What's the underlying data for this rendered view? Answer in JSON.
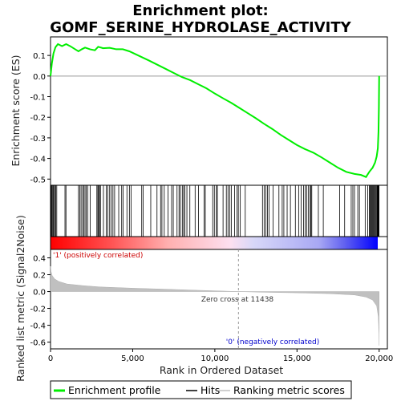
{
  "chart_data": {
    "type": "line",
    "title_line1": "Enrichment plot:",
    "title_line2": "GOMF_SERINE_HYDROLASE_ACTIVITY",
    "top_panel": {
      "ylabel": "Enrichment score (ES)",
      "ylim": [
        -0.53,
        0.19
      ],
      "yticks": [
        {
          "value": 0.1,
          "label": "0.1"
        },
        {
          "value": 0.0,
          "label": "0.0"
        },
        {
          "value": -0.1,
          "label": "-0.1"
        },
        {
          "value": -0.2,
          "label": "-0.2"
        },
        {
          "value": -0.3,
          "label": "-0.3"
        },
        {
          "value": -0.4,
          "label": "-0.4"
        },
        {
          "value": -0.5,
          "label": "-0.5"
        }
      ],
      "series": [
        {
          "name": "Enrichment profile",
          "color": "#00ee00",
          "points": [
            [
              0,
              0.0
            ],
            [
              80,
              0.06
            ],
            [
              180,
              0.11
            ],
            [
              300,
              0.14
            ],
            [
              450,
              0.155
            ],
            [
              700,
              0.145
            ],
            [
              950,
              0.155
            ],
            [
              1200,
              0.145
            ],
            [
              1500,
              0.13
            ],
            [
              1700,
              0.12
            ],
            [
              1900,
              0.13
            ],
            [
              2100,
              0.138
            ],
            [
              2400,
              0.13
            ],
            [
              2700,
              0.125
            ],
            [
              2900,
              0.142
            ],
            [
              3200,
              0.135
            ],
            [
              3600,
              0.137
            ],
            [
              4000,
              0.13
            ],
            [
              4400,
              0.13
            ],
            [
              4800,
              0.12
            ],
            [
              5200,
              0.105
            ],
            [
              5600,
              0.09
            ],
            [
              6000,
              0.075
            ],
            [
              6500,
              0.055
            ],
            [
              7000,
              0.035
            ],
            [
              7500,
              0.015
            ],
            [
              8000,
              -0.005
            ],
            [
              8500,
              -0.02
            ],
            [
              9000,
              -0.04
            ],
            [
              9500,
              -0.06
            ],
            [
              10000,
              -0.085
            ],
            [
              10500,
              -0.108
            ],
            [
              11000,
              -0.13
            ],
            [
              11500,
              -0.155
            ],
            [
              12000,
              -0.18
            ],
            [
              12500,
              -0.205
            ],
            [
              13000,
              -0.232
            ],
            [
              13500,
              -0.257
            ],
            [
              14000,
              -0.285
            ],
            [
              14500,
              -0.31
            ],
            [
              15000,
              -0.335
            ],
            [
              15500,
              -0.355
            ],
            [
              16000,
              -0.372
            ],
            [
              16500,
              -0.395
            ],
            [
              17000,
              -0.42
            ],
            [
              17500,
              -0.445
            ],
            [
              18000,
              -0.465
            ],
            [
              18500,
              -0.475
            ],
            [
              18900,
              -0.48
            ],
            [
              19200,
              -0.49
            ],
            [
              19400,
              -0.465
            ],
            [
              19600,
              -0.445
            ],
            [
              19750,
              -0.42
            ],
            [
              19850,
              -0.39
            ],
            [
              19920,
              -0.35
            ],
            [
              19960,
              -0.27
            ],
            [
              19985,
              -0.15
            ],
            [
              20000,
              0.0
            ]
          ]
        }
      ]
    },
    "hits_panel": {
      "legend_name": "Hits",
      "hit_positions": [
        10,
        40,
        70,
        110,
        160,
        200,
        260,
        320,
        380,
        880,
        940,
        1700,
        1780,
        1860,
        1950,
        2030,
        2100,
        2170,
        2260,
        2420,
        2820,
        2880,
        2930,
        2980,
        3040,
        3220,
        3400,
        3480,
        3600,
        3700,
        3800,
        3900,
        4150,
        4330,
        4420,
        4650,
        4800,
        4900,
        5550,
        5640,
        6100,
        6480,
        6700,
        6780,
        6920,
        7150,
        7370,
        7470,
        7700,
        7820,
        7900,
        8020,
        8100,
        8180,
        8300,
        8480,
        8800,
        9000,
        9350,
        9420,
        9870,
        9970,
        10100,
        10150,
        10500,
        10700,
        10800,
        10900,
        11000,
        11200,
        11350,
        11430,
        11550,
        11850,
        12900,
        13000,
        13100,
        13200,
        13300,
        13550,
        13900,
        14100,
        14200,
        14400,
        14600,
        14900,
        15100,
        15250,
        15400,
        15500,
        15600,
        15700,
        15800,
        15850,
        15900,
        16300,
        16600,
        17600,
        17900,
        18300,
        18400,
        18500,
        18700,
        18800,
        19150,
        19300,
        19400,
        19450,
        19500,
        19550,
        19600,
        19650,
        19700,
        19750,
        19800,
        19850,
        19880,
        19910,
        19930,
        19950,
        19965,
        19980,
        19990
      ]
    },
    "bottom_panel": {
      "ylabel": "Ranked list metric (Signal2Noise)",
      "ylim": [
        -0.68,
        0.5
      ],
      "yticks": [
        {
          "value": 0.4,
          "label": "0.4"
        },
        {
          "value": 0.2,
          "label": "0.2"
        },
        {
          "value": 0.0,
          "label": "0.0"
        },
        {
          "value": -0.2,
          "label": "-0.2"
        },
        {
          "value": -0.4,
          "label": "-0.4"
        },
        {
          "value": -0.6,
          "label": "-0.6"
        }
      ],
      "series": [
        {
          "name": "Ranking metric scores",
          "color": "#c0c0c0",
          "points": [
            [
              0,
              0.3
            ],
            [
              30,
              0.24
            ],
            [
              100,
              0.19
            ],
            [
              250,
              0.15
            ],
            [
              500,
              0.12
            ],
            [
              1000,
              0.09
            ],
            [
              2000,
              0.07
            ],
            [
              3000,
              0.055
            ],
            [
              5000,
              0.04
            ],
            [
              7000,
              0.028
            ],
            [
              9000,
              0.015
            ],
            [
              11438,
              0.0
            ],
            [
              13000,
              -0.008
            ],
            [
              15000,
              -0.015
            ],
            [
              17000,
              -0.025
            ],
            [
              18500,
              -0.04
            ],
            [
              19200,
              -0.065
            ],
            [
              19600,
              -0.1
            ],
            [
              19850,
              -0.17
            ],
            [
              19950,
              -0.3
            ],
            [
              19990,
              -0.5
            ],
            [
              20000,
              -0.64
            ]
          ]
        }
      ],
      "zero_cross_label": "Zero cross at 11438",
      "zero_cross": 11438,
      "positive_label": "'1' (positively correlated)",
      "negative_label": "'0' (negatively correlated)"
    },
    "xlabel": "Rank in Ordered Dataset",
    "xlim": [
      0,
      20500
    ],
    "xticks": [
      {
        "value": 0,
        "label": "0"
      },
      {
        "value": 5000,
        "label": "5,000"
      },
      {
        "value": 10000,
        "label": "10,000"
      },
      {
        "value": 15000,
        "label": "15,000"
      },
      {
        "value": 20000,
        "label": "20,000"
      }
    ],
    "legend": {
      "placement": "bottom",
      "entries": [
        "Enrichment profile",
        "Hits",
        "Ranking metric scores"
      ]
    },
    "colors": {
      "es_line": "#00ee00",
      "hit_line": "#000000",
      "metric_fill": "#c0c0c0",
      "positive": "#ff0000",
      "negative": "#0000ff",
      "zero_line": "#999999"
    }
  }
}
